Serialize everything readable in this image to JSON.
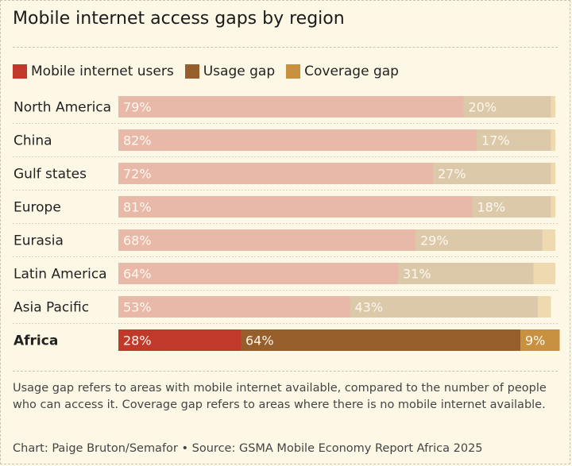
{
  "chart_data": {
    "type": "bar",
    "orientation": "horizontal",
    "stacked": true,
    "title": "Mobile internet access gaps by region",
    "categories": [
      "North America",
      "China",
      "Gulf states",
      "Europe",
      "Eurasia",
      "Latin America",
      "Asia Pacific",
      "Africa"
    ],
    "highlight": "Africa",
    "series": [
      {
        "name": "Mobile internet users",
        "values": [
          79,
          82,
          72,
          81,
          68,
          64,
          53,
          28
        ],
        "color": "#c0392b",
        "muted_color": "#e8b9a8"
      },
      {
        "name": "Usage gap",
        "values": [
          20,
          17,
          27,
          18,
          29,
          31,
          43,
          64
        ],
        "color": "#955e2b",
        "muted_color": "#dbc9aa"
      },
      {
        "name": "Coverage gap",
        "values": [
          1,
          1,
          1,
          1,
          3,
          5,
          3,
          9
        ],
        "color": "#c8913f",
        "muted_color": "#eed9b0"
      }
    ],
    "xlim": [
      0,
      100
    ],
    "grid": false,
    "legend": "top-left"
  },
  "note": "Usage gap refers to areas with mobile internet available, compared to the number of people who can access it. Coverage gap refers to areas where there is no mobile internet available.",
  "source": "Chart: Paige Bruton/Semafor  • Source: GSMA Mobile Economy Report Africa 2025"
}
